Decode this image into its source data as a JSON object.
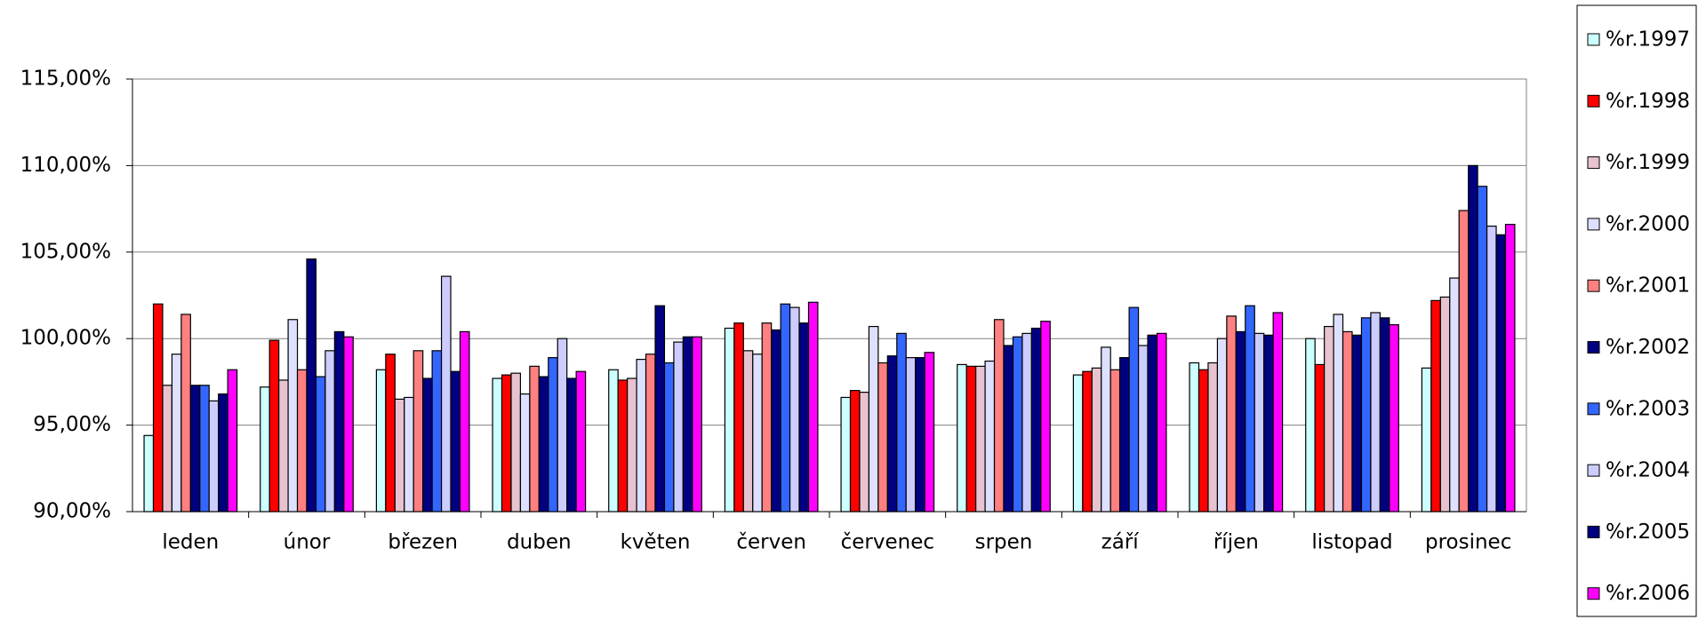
{
  "chart_data": {
    "type": "bar",
    "categories": [
      "leden",
      "únor",
      "březen",
      "duben",
      "květen",
      "červen",
      "červenec",
      "srpen",
      "září",
      "říjen",
      "listopad",
      "prosinec"
    ],
    "series": [
      {
        "name": "%r.1997",
        "color": "#ccffff",
        "values": [
          94.4,
          97.2,
          98.2,
          97.7,
          98.2,
          100.6,
          96.6,
          98.5,
          97.9,
          98.6,
          100.0,
          98.3
        ]
      },
      {
        "name": "%r.1998",
        "color": "#ff0000",
        "values": [
          102.0,
          99.9,
          99.1,
          97.9,
          97.6,
          100.9,
          97.0,
          98.4,
          98.1,
          98.2,
          98.5,
          102.2
        ]
      },
      {
        "name": "%r.1999",
        "color": "#e6c3cf",
        "values": [
          97.3,
          97.6,
          96.5,
          98.0,
          97.7,
          99.3,
          96.9,
          98.4,
          98.3,
          98.6,
          100.7,
          102.4
        ]
      },
      {
        "name": "%r.2000",
        "color": "#dde0ff",
        "values": [
          99.1,
          101.1,
          96.6,
          96.8,
          98.8,
          99.1,
          100.7,
          98.7,
          99.5,
          100.0,
          101.4,
          103.5
        ]
      },
      {
        "name": "%r.2001",
        "color": "#ff8080",
        "values": [
          101.4,
          98.2,
          99.3,
          98.4,
          99.1,
          100.9,
          98.6,
          101.1,
          98.2,
          101.3,
          100.4,
          107.4
        ]
      },
      {
        "name": "%r.2002",
        "color": "#000080",
        "values": [
          97.3,
          104.6,
          97.7,
          97.8,
          101.9,
          100.5,
          99.0,
          99.6,
          98.9,
          100.4,
          100.2,
          110.0
        ]
      },
      {
        "name": "%r.2003",
        "color": "#3366ff",
        "values": [
          97.3,
          97.8,
          99.3,
          98.9,
          98.6,
          102.0,
          100.3,
          100.1,
          101.8,
          101.9,
          101.2,
          108.8
        ]
      },
      {
        "name": "%r.2004",
        "color": "#ccccff",
        "values": [
          96.4,
          99.3,
          103.6,
          100.0,
          99.8,
          101.8,
          98.9,
          100.3,
          99.6,
          100.3,
          101.5,
          106.5
        ]
      },
      {
        "name": "%r.2005",
        "color": "#000080",
        "values": [
          96.8,
          100.4,
          98.1,
          97.7,
          100.1,
          100.9,
          98.9,
          100.6,
          100.2,
          100.2,
          101.2,
          106.0
        ]
      },
      {
        "name": "%r.2006",
        "color": "#ff00ff",
        "values": [
          98.2,
          100.1,
          100.4,
          98.1,
          100.1,
          102.1,
          99.2,
          101.0,
          100.3,
          101.5,
          100.8,
          106.6
        ]
      }
    ],
    "ylim": [
      90,
      115
    ],
    "yticks": [
      {
        "value": 90,
        "label": "90,00%"
      },
      {
        "value": 95,
        "label": "95,00%"
      },
      {
        "value": 100,
        "label": "100,00%"
      },
      {
        "value": 105,
        "label": "105,00%"
      },
      {
        "value": 110,
        "label": "110,00%"
      },
      {
        "value": 115,
        "label": "115,00%"
      }
    ],
    "grid": true,
    "legend": "right"
  }
}
